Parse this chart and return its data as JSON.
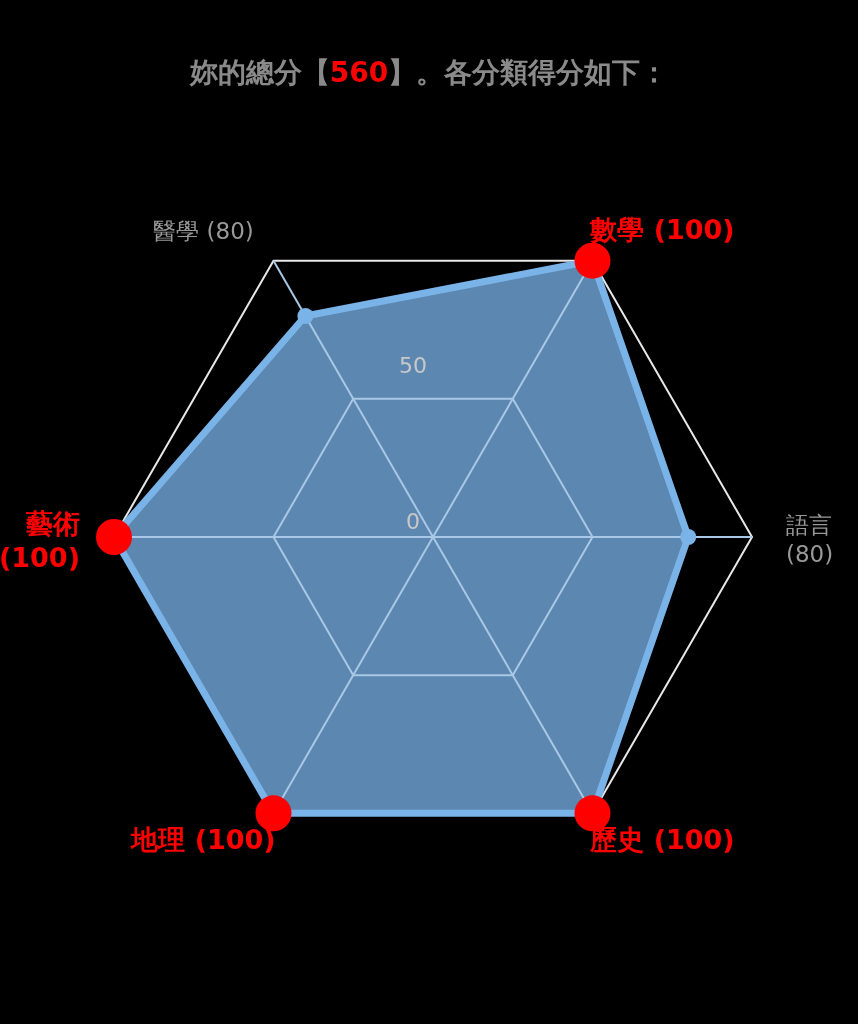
{
  "chart_data": {
    "type": "radar",
    "title": "妳的總分【560】。各分類得分如下：",
    "categories": [
      "數學 (100)",
      "語言 (80)",
      "歷史 (100)",
      "地理 (100)",
      "藝術 (100)",
      "醫學 (80)"
    ],
    "series": [
      {
        "color": "#7ab3e8",
        "values": [
          100,
          80,
          100,
          100,
          100,
          80
        ]
      }
    ],
    "ylim": [
      0,
      100
    ],
    "yticks": [
      0,
      50
    ],
    "marker": "circle"
  }
}
